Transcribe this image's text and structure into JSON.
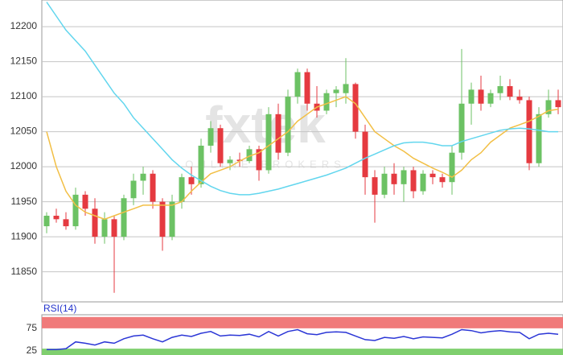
{
  "chart_data": [
    {
      "type": "candlestick",
      "watermark": "fxtek",
      "watermark_subtitle": "ONLINE BROKERS",
      "ylim": [
        11807,
        12238
      ],
      "yticks": [
        11850,
        11900,
        11950,
        12000,
        12050,
        12100,
        12150,
        12200
      ],
      "grid": true,
      "up_color": "#6cc264",
      "down_color": "#e53a40",
      "open": [
        11915,
        11930,
        11925,
        11915,
        11960,
        11940,
        11900,
        11925,
        11900,
        11955,
        11980,
        11990,
        11950,
        11900,
        11950,
        11985,
        11975,
        12030,
        12055,
        12005,
        12010,
        12008,
        12025,
        11995,
        12075,
        12020,
        12100,
        12135,
        12090,
        12080,
        12105,
        12105,
        12118,
        12050,
        11985,
        11960,
        11990,
        11975,
        11995,
        11965,
        11990,
        11985,
        11978,
        12020,
        12090,
        12110,
        12090,
        12105,
        12115,
        12100,
        12095,
        12005,
        12075,
        12095
      ],
      "high": [
        11935,
        11940,
        11935,
        11970,
        11965,
        11955,
        11935,
        11930,
        11960,
        11990,
        12000,
        11995,
        11955,
        11960,
        11990,
        12000,
        12040,
        12065,
        12060,
        12015,
        12020,
        12030,
        12030,
        12085,
        12090,
        12110,
        12140,
        12140,
        12115,
        12110,
        12115,
        12155,
        12120,
        12060,
        11995,
        12000,
        12005,
        12000,
        12000,
        11995,
        11995,
        11990,
        12030,
        12168,
        12120,
        12130,
        12110,
        12130,
        12125,
        12110,
        12100,
        12085,
        12110,
        12110
      ],
      "low": [
        11905,
        11920,
        11910,
        11910,
        11930,
        11890,
        11890,
        11820,
        11895,
        11945,
        11960,
        11940,
        11880,
        11895,
        11940,
        11960,
        11970,
        12020,
        12000,
        11995,
        12000,
        12005,
        11980,
        11990,
        12010,
        12015,
        12090,
        12080,
        12070,
        12075,
        12085,
        12090,
        12040,
        11960,
        11920,
        11955,
        11960,
        11950,
        11955,
        11960,
        11975,
        11970,
        11960,
        12010,
        12060,
        12080,
        12085,
        12095,
        12095,
        12090,
        11995,
        12000,
        12070,
        12075
      ],
      "close": [
        11930,
        11925,
        11915,
        11960,
        11940,
        11900,
        11925,
        11900,
        11955,
        11980,
        11990,
        11950,
        11900,
        11950,
        11985,
        11975,
        12030,
        12055,
        12005,
        12010,
        12008,
        12025,
        11995,
        12075,
        12020,
        12100,
        12135,
        12090,
        12080,
        12105,
        12110,
        12118,
        12050,
        11985,
        11960,
        11990,
        11975,
        11995,
        11965,
        11990,
        11985,
        11978,
        12020,
        12090,
        12110,
        12090,
        12105,
        12115,
        12100,
        12095,
        12005,
        12075,
        12095,
        12085
      ],
      "series": [
        {
          "color": "#f2bf45",
          "values": [
            12050,
            12000,
            11965,
            11945,
            11935,
            11930,
            11925,
            11930,
            11935,
            11940,
            11945,
            11945,
            11945,
            11945,
            11950,
            11965,
            11978,
            11990,
            11995,
            12000,
            12008,
            12015,
            12020,
            12030,
            12040,
            12050,
            12065,
            12075,
            12085,
            12090,
            12095,
            12100,
            12090,
            12070,
            12050,
            12040,
            12030,
            12022,
            12012,
            12005,
            11998,
            11992,
            11985,
            11995,
            12010,
            12020,
            12035,
            12045,
            12055,
            12060,
            12065,
            12072,
            12080,
            12082
          ]
        },
        {
          "color": "#62d6ee",
          "values": [
            12235,
            12215,
            12195,
            12180,
            12165,
            12145,
            12125,
            12105,
            12090,
            12070,
            12055,
            12040,
            12025,
            12010,
            11998,
            11988,
            11980,
            11972,
            11966,
            11962,
            11960,
            11960,
            11962,
            11965,
            11968,
            11972,
            11976,
            11980,
            11984,
            11988,
            11993,
            11998,
            12005,
            12012,
            12018,
            12024,
            12030,
            12034,
            12035,
            12035,
            12033,
            12030,
            12030,
            12036,
            12040,
            12044,
            12048,
            12052,
            12054,
            12055,
            12054,
            12052,
            12050,
            12050
          ]
        }
      ]
    },
    {
      "type": "line",
      "title": "RSI(14)",
      "ylim": [
        16,
        105
      ],
      "yticks": [
        25,
        75
      ],
      "bands": [
        {
          "from": 75,
          "to": 100,
          "color": "#f07a7a"
        },
        {
          "from": 0,
          "to": 30,
          "color": "#7fcf6e"
        }
      ],
      "series": [
        {
          "color": "#2b36d6",
          "values": [
            28,
            28,
            30,
            45,
            42,
            38,
            45,
            42,
            52,
            58,
            60,
            52,
            45,
            55,
            60,
            57,
            64,
            68,
            58,
            60,
            59,
            62,
            56,
            68,
            58,
            68,
            72,
            63,
            61,
            66,
            67,
            66,
            58,
            50,
            48,
            55,
            53,
            57,
            52,
            56,
            55,
            54,
            62,
            72,
            70,
            65,
            68,
            70,
            67,
            66,
            52,
            62,
            64,
            62
          ]
        }
      ]
    }
  ]
}
